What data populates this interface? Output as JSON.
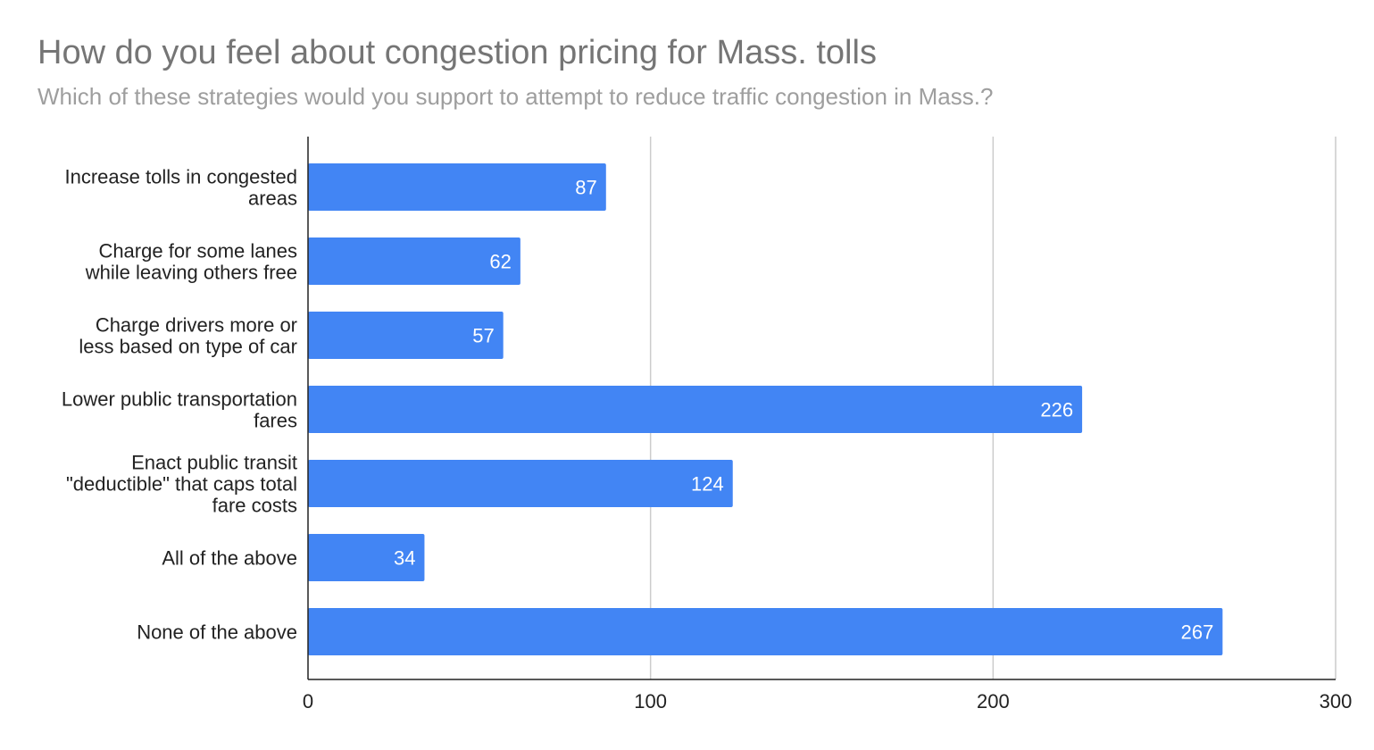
{
  "title": "How do you feel about congestion pricing for Mass. tolls",
  "subtitle": "Which of these strategies would you support to attempt to reduce traffic congestion in Mass.?",
  "chart_data": {
    "type": "bar",
    "orientation": "horizontal",
    "title": "How do you feel about congestion pricing for Mass. tolls",
    "subtitle": "Which of these strategies would you support to attempt to reduce traffic congestion in Mass.?",
    "categories": [
      [
        "Increase tolls in congested",
        "areas"
      ],
      [
        "Charge for some lanes",
        "while leaving others free"
      ],
      [
        "Charge drivers more or",
        "less based on type of car"
      ],
      [
        "Lower public transportation",
        "fares"
      ],
      [
        "Enact public transit",
        "\"deductible\" that caps total",
        "fare costs"
      ],
      [
        "All of the above"
      ],
      [
        "None of the above"
      ]
    ],
    "values": [
      87,
      62,
      57,
      226,
      124,
      34,
      267
    ],
    "xlim": [
      0,
      300
    ],
    "xticks": [
      0,
      100,
      200,
      300
    ],
    "grid": true,
    "legend": "none",
    "bar_color": "#4285f4"
  }
}
